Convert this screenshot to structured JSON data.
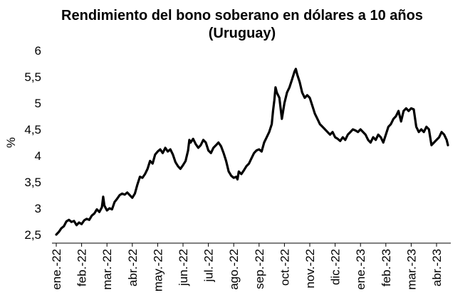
{
  "chart_data": {
    "type": "line",
    "title": "Rendimiento del bono soberano en dólares a 10 años (Uruguay)",
    "xlabel": "",
    "ylabel": "%",
    "ylim": [
      2.5,
      6
    ],
    "yticks": [
      "2,5",
      "3",
      "3,5",
      "4",
      "4,5",
      "5",
      "5,5",
      "6"
    ],
    "grid": false,
    "legend": "none",
    "line_color": "#000000",
    "categories": [
      "ene.-22",
      "feb.-22",
      "mar.-22",
      "abr.-22",
      "may.-22",
      "jun.-22",
      "jul.-22",
      "ago.-22",
      "sep.-22",
      "oct.-22",
      "nov.-22",
      "dic.-22",
      "ene.-23",
      "feb.-23",
      "mar.-23",
      "abr.-23"
    ],
    "series": [
      {
        "values": [
          [
            0.0,
            2.5
          ],
          [
            0.1,
            2.55
          ],
          [
            0.2,
            2.62
          ],
          [
            0.3,
            2.66
          ],
          [
            0.4,
            2.75
          ],
          [
            0.5,
            2.78
          ],
          [
            0.6,
            2.74
          ],
          [
            0.7,
            2.76
          ],
          [
            0.8,
            2.68
          ],
          [
            0.9,
            2.73
          ],
          [
            1.0,
            2.7
          ],
          [
            1.1,
            2.77
          ],
          [
            1.2,
            2.8
          ],
          [
            1.3,
            2.78
          ],
          [
            1.4,
            2.86
          ],
          [
            1.5,
            2.9
          ],
          [
            1.6,
            2.98
          ],
          [
            1.7,
            2.93
          ],
          [
            1.8,
            3.02
          ],
          [
            1.85,
            3.22
          ],
          [
            1.9,
            3.05
          ],
          [
            2.0,
            2.96
          ],
          [
            2.1,
            3.0
          ],
          [
            2.2,
            2.98
          ],
          [
            2.3,
            3.12
          ],
          [
            2.4,
            3.18
          ],
          [
            2.5,
            3.25
          ],
          [
            2.6,
            3.28
          ],
          [
            2.7,
            3.26
          ],
          [
            2.8,
            3.3
          ],
          [
            2.9,
            3.25
          ],
          [
            3.0,
            3.2
          ],
          [
            3.1,
            3.28
          ],
          [
            3.2,
            3.45
          ],
          [
            3.3,
            3.6
          ],
          [
            3.4,
            3.58
          ],
          [
            3.5,
            3.65
          ],
          [
            3.6,
            3.75
          ],
          [
            3.7,
            3.9
          ],
          [
            3.8,
            3.85
          ],
          [
            3.9,
            4.02
          ],
          [
            4.0,
            4.08
          ],
          [
            4.1,
            4.12
          ],
          [
            4.2,
            4.05
          ],
          [
            4.3,
            4.15
          ],
          [
            4.4,
            4.08
          ],
          [
            4.5,
            4.12
          ],
          [
            4.6,
            4.02
          ],
          [
            4.7,
            3.88
          ],
          [
            4.8,
            3.8
          ],
          [
            4.9,
            3.75
          ],
          [
            5.0,
            3.82
          ],
          [
            5.1,
            3.9
          ],
          [
            5.2,
            4.1
          ],
          [
            5.25,
            4.3
          ],
          [
            5.3,
            4.25
          ],
          [
            5.4,
            4.32
          ],
          [
            5.5,
            4.22
          ],
          [
            5.6,
            4.15
          ],
          [
            5.7,
            4.2
          ],
          [
            5.8,
            4.3
          ],
          [
            5.9,
            4.25
          ],
          [
            6.0,
            4.1
          ],
          [
            6.1,
            4.05
          ],
          [
            6.2,
            4.15
          ],
          [
            6.3,
            4.2
          ],
          [
            6.4,
            4.25
          ],
          [
            6.5,
            4.18
          ],
          [
            6.6,
            4.05
          ],
          [
            6.7,
            3.9
          ],
          [
            6.8,
            3.7
          ],
          [
            6.9,
            3.62
          ],
          [
            7.0,
            3.58
          ],
          [
            7.1,
            3.6
          ],
          [
            7.15,
            3.55
          ],
          [
            7.2,
            3.7
          ],
          [
            7.3,
            3.65
          ],
          [
            7.4,
            3.72
          ],
          [
            7.5,
            3.8
          ],
          [
            7.6,
            3.85
          ],
          [
            7.7,
            3.95
          ],
          [
            7.8,
            4.05
          ],
          [
            7.9,
            4.1
          ],
          [
            8.0,
            4.12
          ],
          [
            8.1,
            4.08
          ],
          [
            8.2,
            4.25
          ],
          [
            8.3,
            4.35
          ],
          [
            8.4,
            4.45
          ],
          [
            8.5,
            4.6
          ],
          [
            8.55,
            4.85
          ],
          [
            8.6,
            5.05
          ],
          [
            8.65,
            5.3
          ],
          [
            8.7,
            5.2
          ],
          [
            8.8,
            5.1
          ],
          [
            8.9,
            4.7
          ],
          [
            9.0,
            5.0
          ],
          [
            9.1,
            5.2
          ],
          [
            9.2,
            5.3
          ],
          [
            9.3,
            5.45
          ],
          [
            9.4,
            5.6
          ],
          [
            9.45,
            5.65
          ],
          [
            9.5,
            5.55
          ],
          [
            9.6,
            5.4
          ],
          [
            9.7,
            5.2
          ],
          [
            9.8,
            5.1
          ],
          [
            9.9,
            5.15
          ],
          [
            10.0,
            5.1
          ],
          [
            10.1,
            4.95
          ],
          [
            10.2,
            4.8
          ],
          [
            10.3,
            4.7
          ],
          [
            10.4,
            4.6
          ],
          [
            10.5,
            4.55
          ],
          [
            10.6,
            4.5
          ],
          [
            10.7,
            4.45
          ],
          [
            10.8,
            4.4
          ],
          [
            10.9,
            4.45
          ],
          [
            11.0,
            4.35
          ],
          [
            11.1,
            4.32
          ],
          [
            11.2,
            4.28
          ],
          [
            11.3,
            4.35
          ],
          [
            11.4,
            4.3
          ],
          [
            11.5,
            4.4
          ],
          [
            11.6,
            4.45
          ],
          [
            11.7,
            4.5
          ],
          [
            11.8,
            4.48
          ],
          [
            11.9,
            4.45
          ],
          [
            12.0,
            4.5
          ],
          [
            12.1,
            4.45
          ],
          [
            12.2,
            4.4
          ],
          [
            12.3,
            4.3
          ],
          [
            12.4,
            4.25
          ],
          [
            12.5,
            4.35
          ],
          [
            12.6,
            4.3
          ],
          [
            12.7,
            4.4
          ],
          [
            12.8,
            4.35
          ],
          [
            12.9,
            4.25
          ],
          [
            13.0,
            4.4
          ],
          [
            13.1,
            4.55
          ],
          [
            13.2,
            4.6
          ],
          [
            13.3,
            4.7
          ],
          [
            13.4,
            4.75
          ],
          [
            13.5,
            4.85
          ],
          [
            13.6,
            4.65
          ],
          [
            13.7,
            4.85
          ],
          [
            13.8,
            4.9
          ],
          [
            13.9,
            4.85
          ],
          [
            14.0,
            4.9
          ],
          [
            14.1,
            4.88
          ],
          [
            14.2,
            4.55
          ],
          [
            14.3,
            4.45
          ],
          [
            14.4,
            4.5
          ],
          [
            14.5,
            4.45
          ],
          [
            14.6,
            4.55
          ],
          [
            14.7,
            4.5
          ],
          [
            14.8,
            4.2
          ],
          [
            14.9,
            4.25
          ],
          [
            15.0,
            4.3
          ],
          [
            15.1,
            4.35
          ],
          [
            15.2,
            4.45
          ],
          [
            15.3,
            4.4
          ],
          [
            15.4,
            4.3
          ],
          [
            15.45,
            4.2
          ]
        ]
      }
    ]
  }
}
